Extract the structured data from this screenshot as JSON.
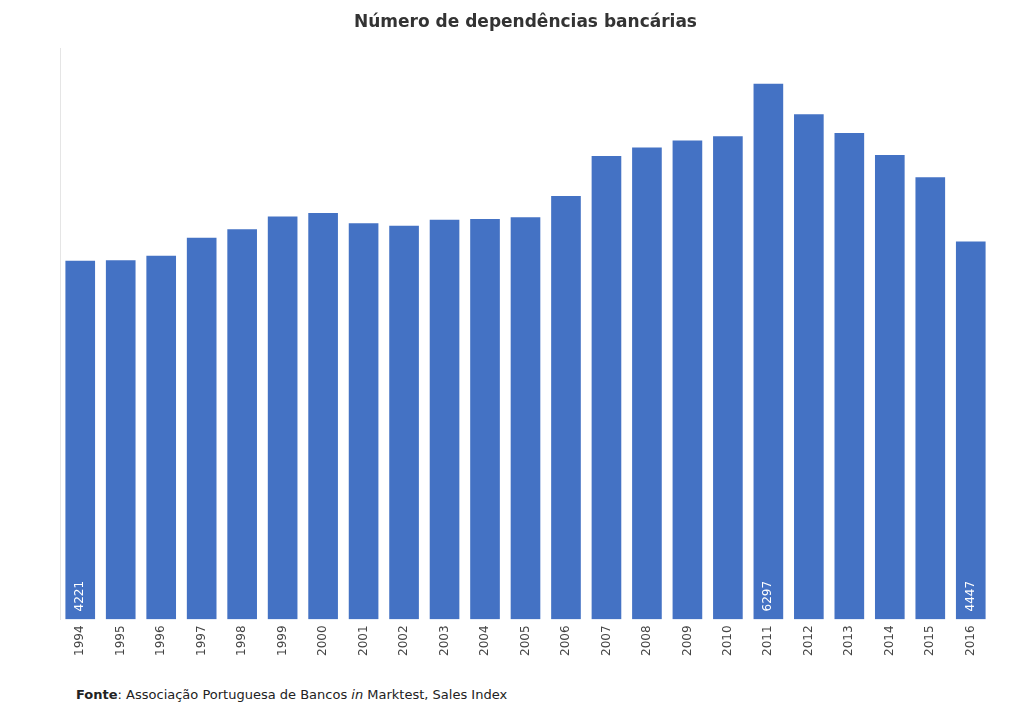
{
  "chart_data": {
    "type": "bar",
    "title": "Número de dependências bancárias",
    "categories": [
      "1994",
      "1995",
      "1996",
      "1997",
      "1998",
      "1999",
      "2000",
      "2001",
      "2002",
      "2003",
      "2004",
      "2005",
      "2006",
      "2007",
      "2008",
      "2009",
      "2010",
      "2011",
      "2012",
      "2013",
      "2014",
      "2015",
      "2016"
    ],
    "values": [
      4221,
      4225,
      4280,
      4490,
      4590,
      4740,
      4780,
      4660,
      4630,
      4700,
      4710,
      4730,
      4980,
      5450,
      5550,
      5630,
      5680,
      6297,
      5940,
      5720,
      5460,
      5200,
      4447
    ],
    "value_labels": [
      "4221",
      null,
      null,
      null,
      null,
      null,
      null,
      null,
      null,
      null,
      null,
      null,
      null,
      null,
      null,
      null,
      null,
      "6297",
      null,
      null,
      null,
      null,
      "4447"
    ],
    "color": "#4472C4",
    "ylim": [
      0,
      6700
    ],
    "grid": false,
    "tick_labels": "x",
    "annotations": [
      "Fonte",
      ": Associação Portuguesa de Bancos ",
      "in",
      " Marktest, Sales Index"
    ]
  }
}
